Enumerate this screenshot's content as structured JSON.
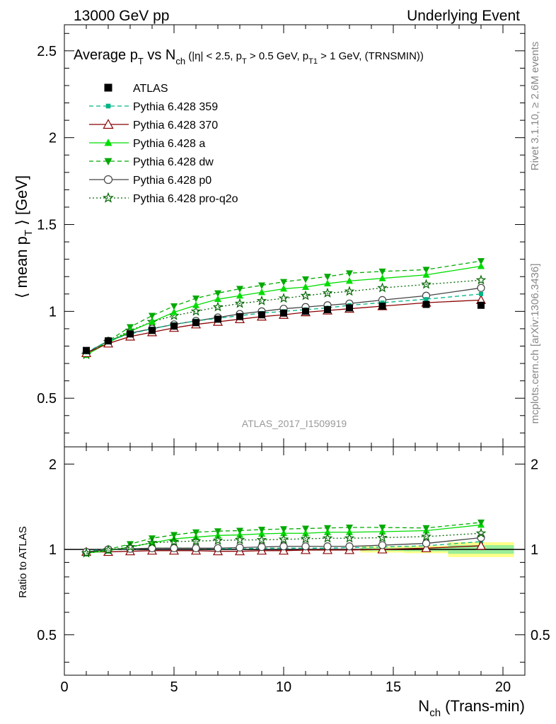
{
  "header": {
    "left": "13000 GeV pp",
    "right": "Underlying Event"
  },
  "side": {
    "version": "Rivet 3.1.10, ≥ 2.6M events",
    "source": "mcplots.cern.ch [arXiv:1306.3436]"
  },
  "chart_data": [
    {
      "type": "scatter",
      "panel": "main",
      "title": "Average p_T vs N_ch (|η| < 2.5, p_T > 0.5 GeV, p_T1 > 1 GeV, (TRNSMIN))",
      "title_parts": {
        "a": "Average p",
        "a_sub": "T",
        "b": " vs N",
        "b_sub": "ch",
        "c": " (|η| < 2.5, p",
        "c_sub": "T",
        "d": " > 0.5 GeV, p",
        "d_sub": "T1",
        "e": " > 1 GeV, (TRNSMIN))"
      },
      "ylabel": "⟨ mean p_T ⟩ [GeV]",
      "ylabel_parts": {
        "a": "⟨ mean p",
        "sub": "T",
        "b": " ⟩ [GeV]"
      },
      "watermark": "ATLAS_2017_I1509919",
      "xlim": [
        0,
        21
      ],
      "ylim": [
        0.22,
        2.65
      ],
      "yticks": [
        0.5,
        1,
        1.5,
        2,
        2.5
      ],
      "ytick_labels": [
        "0.5",
        "1",
        "1.5",
        "2",
        "2.5"
      ],
      "x": [
        1,
        2,
        3,
        4,
        5,
        6,
        7,
        8,
        9,
        10,
        11,
        12,
        13,
        14.5,
        16.5,
        19
      ],
      "legend_position": "top-left",
      "series": [
        {
          "name": "ATLAS",
          "color": "#000000",
          "marker": "square-filled",
          "line": "none",
          "values": [
            0.775,
            0.83,
            0.87,
            0.89,
            0.915,
            0.935,
            0.955,
            0.97,
            0.98,
            0.99,
            1.0,
            1.01,
            1.02,
            1.03,
            1.04,
            1.035
          ]
        },
        {
          "name": "Pythia 6.428 359",
          "color": "#00b585",
          "marker": "square-small",
          "line": "dashed",
          "values": [
            0.765,
            0.83,
            0.87,
            0.9,
            0.925,
            0.945,
            0.96,
            0.975,
            0.99,
            1.0,
            1.01,
            1.02,
            1.035,
            1.05,
            1.07,
            1.1
          ]
        },
        {
          "name": "Pythia 6.428 370",
          "color": "#8b0000",
          "marker": "triangle-open",
          "line": "solid",
          "values": [
            0.76,
            0.815,
            0.855,
            0.88,
            0.905,
            0.925,
            0.94,
            0.955,
            0.97,
            0.98,
            0.995,
            1.005,
            1.015,
            1.03,
            1.05,
            1.065
          ]
        },
        {
          "name": "Pythia 6.428 a",
          "color": "#00dd00",
          "marker": "triangle-filled",
          "line": "solid",
          "values": [
            0.75,
            0.82,
            0.885,
            0.94,
            0.995,
            1.035,
            1.07,
            1.09,
            1.11,
            1.13,
            1.14,
            1.16,
            1.175,
            1.19,
            1.21,
            1.26
          ]
        },
        {
          "name": "Pythia 6.428 dw",
          "color": "#00aa00",
          "marker": "triangle-down-filled",
          "line": "dashed",
          "values": [
            0.75,
            0.83,
            0.91,
            0.975,
            1.03,
            1.075,
            1.105,
            1.13,
            1.15,
            1.17,
            1.185,
            1.2,
            1.22,
            1.23,
            1.24,
            1.29
          ]
        },
        {
          "name": "Pythia 6.428 p0",
          "color": "#444444",
          "marker": "circle-open",
          "line": "solid",
          "values": [
            0.76,
            0.83,
            0.875,
            0.9,
            0.925,
            0.945,
            0.965,
            0.985,
            1.0,
            1.015,
            1.025,
            1.035,
            1.045,
            1.065,
            1.09,
            1.135
          ]
        },
        {
          "name": "Pythia 6.428 pro-q2o",
          "color": "#006600",
          "marker": "star-open",
          "line": "dotted",
          "values": [
            0.75,
            0.825,
            0.89,
            0.94,
            0.975,
            1.0,
            1.025,
            1.045,
            1.06,
            1.075,
            1.09,
            1.105,
            1.115,
            1.135,
            1.155,
            1.18
          ]
        }
      ]
    },
    {
      "type": "scatter",
      "panel": "ratio",
      "ylabel": "Ratio to ATLAS",
      "xlabel": "N_ch (Trans-min)",
      "xlabel_parts": {
        "a": "N",
        "sub": "ch",
        "b": " (Trans-min)"
      },
      "xlim": [
        0,
        21
      ],
      "ylim": [
        0.36,
        2.3
      ],
      "xticks": [
        0,
        5,
        10,
        15,
        20
      ],
      "xtick_labels": [
        "0",
        "5",
        "10",
        "15",
        "20"
      ],
      "yticks": [
        0.5,
        1,
        2
      ],
      "ytick_labels": [
        "0.5",
        "1",
        "2"
      ],
      "x": [
        1,
        2,
        3,
        4,
        5,
        6,
        7,
        8,
        9,
        10,
        11,
        12,
        13,
        14.5,
        16.5,
        19
      ],
      "uncertainty_band": {
        "inner_color": "#99ee99",
        "outer_color": "#ffff88",
        "bins": [
          {
            "x": [
              13.5,
              15.5
            ],
            "inner": 0.012,
            "outer": 0.025
          },
          {
            "x": [
              15.5,
              17.5
            ],
            "inner": 0.015,
            "outer": 0.03
          },
          {
            "x": [
              17.5,
              20.5
            ],
            "inner": 0.035,
            "outer": 0.06
          }
        ]
      },
      "series": [
        {
          "name": "Pythia 6.428 359",
          "values": [
            0.99,
            1.0,
            1.0,
            1.01,
            1.01,
            1.01,
            1.005,
            1.005,
            1.01,
            1.01,
            1.01,
            1.01,
            1.015,
            1.02,
            1.03,
            1.065
          ]
        },
        {
          "name": "Pythia 6.428 370",
          "values": [
            0.98,
            0.98,
            0.985,
            0.99,
            0.99,
            0.99,
            0.985,
            0.985,
            0.99,
            0.99,
            0.995,
            0.995,
            0.995,
            1.0,
            1.01,
            1.03
          ]
        },
        {
          "name": "Pythia 6.428 a",
          "values": [
            0.97,
            0.99,
            1.02,
            1.055,
            1.09,
            1.105,
            1.12,
            1.125,
            1.135,
            1.14,
            1.14,
            1.15,
            1.15,
            1.155,
            1.165,
            1.22
          ]
        },
        {
          "name": "Pythia 6.428 dw",
          "values": [
            0.97,
            1.0,
            1.045,
            1.095,
            1.125,
            1.15,
            1.16,
            1.165,
            1.175,
            1.18,
            1.185,
            1.19,
            1.195,
            1.195,
            1.19,
            1.245
          ]
        },
        {
          "name": "Pythia 6.428 p0",
          "values": [
            0.98,
            1.0,
            1.005,
            1.01,
            1.01,
            1.01,
            1.01,
            1.015,
            1.02,
            1.025,
            1.025,
            1.025,
            1.025,
            1.035,
            1.05,
            1.1
          ]
        },
        {
          "name": "Pythia 6.428 pro-q2o",
          "values": [
            0.97,
            0.995,
            1.02,
            1.055,
            1.065,
            1.07,
            1.075,
            1.08,
            1.08,
            1.085,
            1.09,
            1.095,
            1.095,
            1.1,
            1.11,
            1.14
          ]
        }
      ]
    }
  ]
}
